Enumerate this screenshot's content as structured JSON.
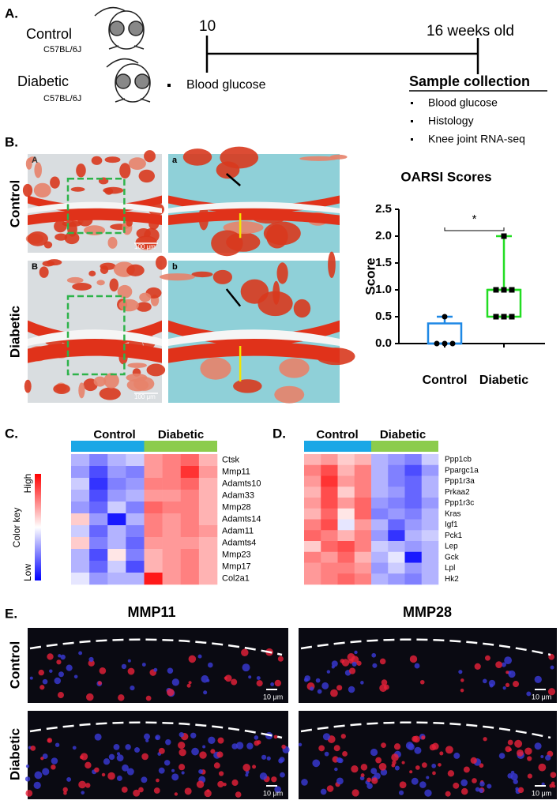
{
  "panel_a": {
    "label": "A.",
    "groups": [
      {
        "name": "Control",
        "strain": "C57BL/6J"
      },
      {
        "name": "Diabetic",
        "strain": "C57BL/6J"
      }
    ],
    "timeline": {
      "start": "10",
      "end": "16 weeks old",
      "start_measure": "Blood glucose",
      "end_title": "Sample collection",
      "end_items": [
        "Blood glucose",
        "Histology",
        "Knee joint RNA-seq"
      ]
    }
  },
  "panel_b": {
    "label": "B.",
    "rows": [
      "Control",
      "Diabetic"
    ],
    "image_letters": [
      "A",
      "a",
      "B",
      "b"
    ],
    "scale_bar": "100 μm"
  },
  "chart_data": {
    "type": "box",
    "title": "OARSI Scores",
    "y_label": "Score",
    "categories": [
      "Control",
      "Diabetic"
    ],
    "boxes": [
      {
        "min": 0,
        "q1": 0,
        "median": 0,
        "q3": 0.375,
        "max": 0.5,
        "points": [
          0.5,
          0,
          0,
          0
        ],
        "color": "#1e88e5"
      },
      {
        "min": 0.5,
        "q1": 0.5,
        "median": 1,
        "q3": 1,
        "max": 2,
        "points": [
          2,
          1,
          1,
          1,
          0.5,
          0.5,
          0.5
        ],
        "color": "#22dd22"
      }
    ],
    "ylim": [
      0,
      2.5
    ],
    "yticks": [
      {
        "value": 0,
        "label": "0.0"
      },
      0.5,
      {
        "value": 1,
        "label": "1.0"
      },
      1.5,
      {
        "value": 2,
        "label": "2.0"
      },
      2.5
    ],
    "significance": "*"
  },
  "panel_c": {
    "label": "C.",
    "groups": [
      "Control",
      "Diabetic"
    ],
    "color_key": {
      "title": "Color key",
      "high": "High",
      "low": "Low"
    },
    "genes": [
      "Ctsk",
      "Mmp11",
      "Adamts10",
      "Adam33",
      "Mmp28",
      "Adamts14",
      "Adam11",
      "Adamts4",
      "Mmp23",
      "Mmp17",
      "Col2a1"
    ],
    "values": [
      [
        -0.3,
        -0.5,
        -0.3,
        -0.2,
        0.4,
        0.5,
        0.6,
        0.3
      ],
      [
        -0.4,
        -0.7,
        -0.4,
        -0.5,
        0.4,
        0.5,
        0.8,
        0.4
      ],
      [
        -0.2,
        -0.8,
        -0.5,
        -0.4,
        0.5,
        0.5,
        0.6,
        0.3
      ],
      [
        -0.3,
        -0.7,
        -0.4,
        -0.3,
        0.4,
        0.4,
        0.5,
        0.3
      ],
      [
        -0.4,
        -0.6,
        -0.2,
        -0.5,
        0.6,
        0.5,
        0.5,
        0.3
      ],
      [
        0.2,
        -0.4,
        -0.9,
        -0.3,
        0.5,
        0.4,
        0.5,
        0.3
      ],
      [
        -0.2,
        -0.6,
        -0.3,
        -0.5,
        0.5,
        0.4,
        0.5,
        0.4
      ],
      [
        0.2,
        -0.5,
        -0.3,
        -0.6,
        0.4,
        0.4,
        0.4,
        0.3
      ],
      [
        -0.3,
        -0.7,
        0.1,
        -0.5,
        0.3,
        0.4,
        0.5,
        0.3
      ],
      [
        -0.3,
        -0.6,
        -0.2,
        -0.7,
        0.3,
        0.4,
        0.5,
        0.3
      ],
      [
        -0.1,
        -0.4,
        -0.3,
        -0.3,
        0.9,
        0.4,
        0.5,
        0.3
      ]
    ]
  },
  "panel_d": {
    "label": "D.",
    "groups": [
      "Control",
      "Diabetic"
    ],
    "genes": [
      "Ppp1cb",
      "Ppargc1a",
      "Ppp1r3a",
      "Prkaa2",
      "Ppp1r3c",
      "Kras",
      "Igf1",
      "Pck1",
      "Lep",
      "Gck",
      "Lpl",
      "Hk2"
    ],
    "values": [
      [
        0.3,
        0.4,
        0.2,
        0.3,
        -0.3,
        -0.4,
        -0.5,
        -0.2
      ],
      [
        0.5,
        0.7,
        0.3,
        0.5,
        -0.3,
        -0.5,
        -0.7,
        -0.4
      ],
      [
        0.4,
        0.8,
        0.4,
        0.5,
        -0.3,
        -0.5,
        -0.6,
        -0.3
      ],
      [
        0.3,
        0.7,
        0.2,
        0.5,
        -0.3,
        -0.4,
        -0.6,
        -0.3
      ],
      [
        0.4,
        0.7,
        0.4,
        0.6,
        -0.4,
        -0.5,
        -0.6,
        -0.4
      ],
      [
        0.3,
        0.6,
        0.1,
        0.6,
        -0.5,
        -0.4,
        -0.5,
        -0.3
      ],
      [
        0.5,
        0.7,
        -0.1,
        0.4,
        -0.3,
        -0.6,
        -0.4,
        -0.3
      ],
      [
        0.6,
        0.5,
        0.3,
        0.5,
        -0.4,
        -0.8,
        -0.3,
        -0.2
      ],
      [
        0.2,
        0.6,
        0.7,
        0.5,
        -0.2,
        -0.3,
        -0.4,
        -0.3
      ],
      [
        0.5,
        0.4,
        0.6,
        0.3,
        -0.3,
        -0.1,
        -0.9,
        -0.3
      ],
      [
        0.4,
        0.5,
        0.5,
        0.4,
        -0.4,
        -0.2,
        -0.4,
        -0.3
      ],
      [
        0.4,
        0.5,
        0.6,
        0.5,
        -0.3,
        -0.4,
        -0.5,
        -0.3
      ]
    ]
  },
  "panel_e": {
    "label": "E.",
    "titles": [
      "MMP11",
      "MMP28"
    ],
    "rows": [
      "Control",
      "Diabetic"
    ],
    "scale_bar": "10 μm"
  }
}
